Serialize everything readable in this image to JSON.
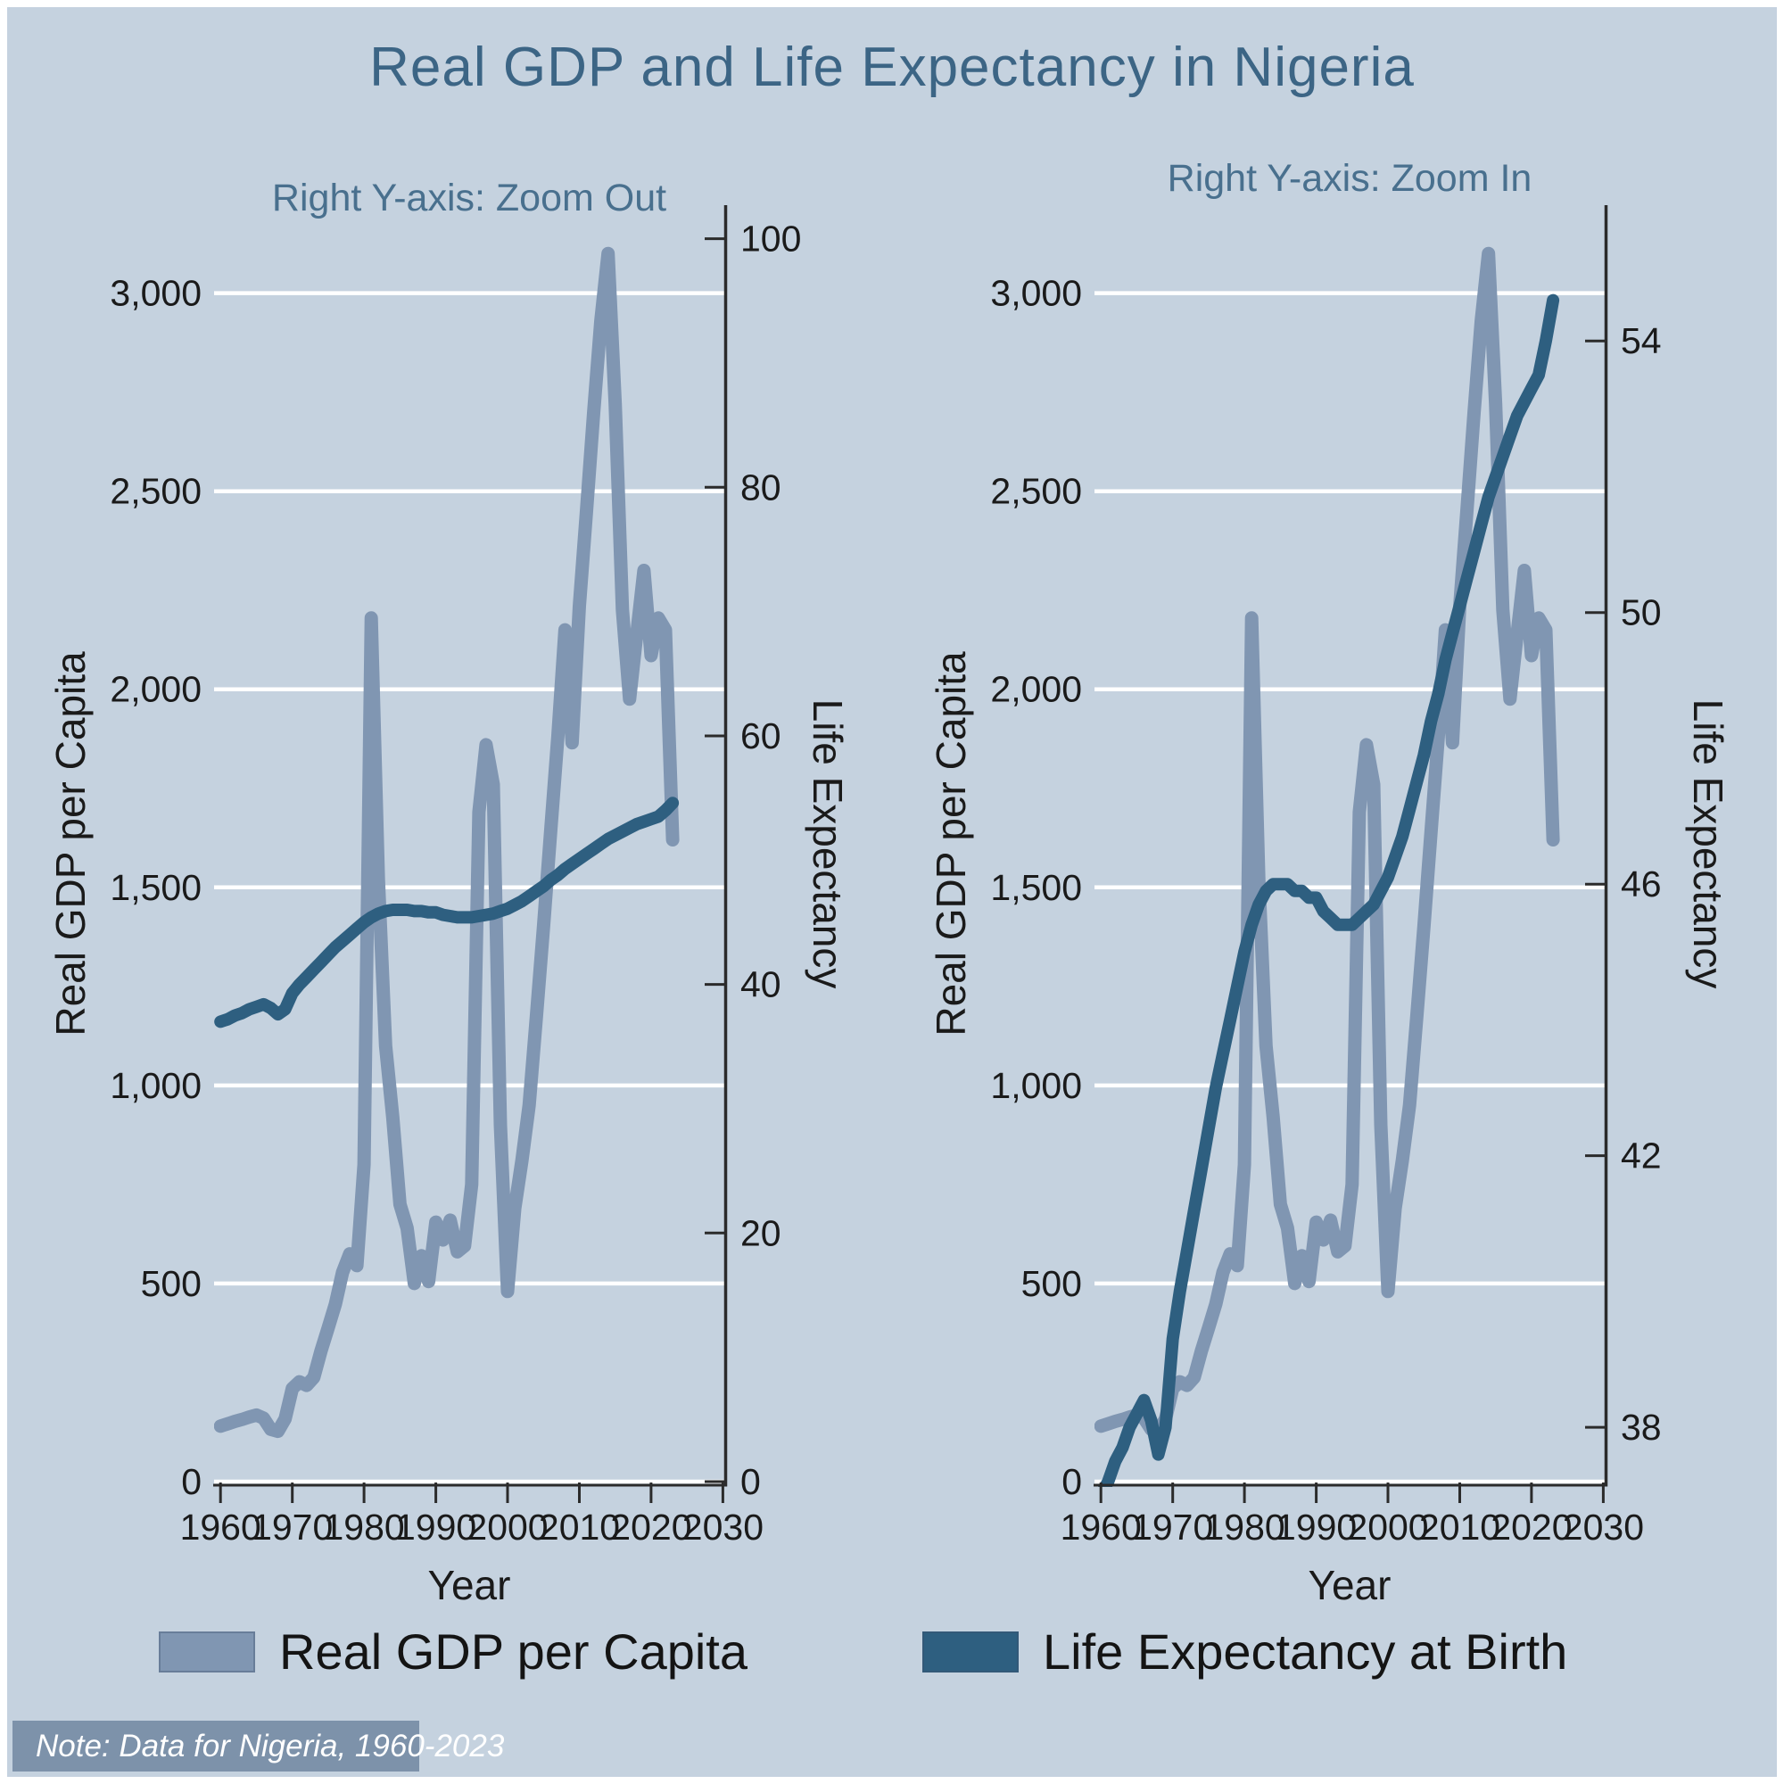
{
  "title": "Real GDP and Life Expectancy in Nigeria",
  "note": {
    "text": "Note: Data for Nigeria, 1960-2023"
  },
  "colors": {
    "page_border": "#FFFFFF",
    "background": "#C5D2DF",
    "grid": "#FFFFFF",
    "axis": "#2B2B2B",
    "tick_text": "#1A1A1A",
    "title": "#3C6585",
    "subtitle": "#49708E",
    "note_bg": "#7D92AA",
    "note_text": "#FFFFFF",
    "gdp_line": "#8096B2",
    "life_line": "#2E5F80"
  },
  "legend": {
    "items": [
      {
        "key": "gdp",
        "label": "Real GDP per Capita"
      },
      {
        "key": "life",
        "label": "Life Expectancy at Birth"
      }
    ]
  },
  "years": [
    1960,
    1961,
    1962,
    1963,
    1964,
    1965,
    1966,
    1967,
    1968,
    1969,
    1970,
    1971,
    1972,
    1973,
    1974,
    1975,
    1976,
    1977,
    1978,
    1979,
    1980,
    1981,
    1982,
    1983,
    1984,
    1985,
    1986,
    1987,
    1988,
    1989,
    1990,
    1991,
    1992,
    1993,
    1994,
    1995,
    1996,
    1997,
    1998,
    1999,
    2000,
    2001,
    2002,
    2003,
    2004,
    2005,
    2006,
    2007,
    2008,
    2009,
    2010,
    2011,
    2012,
    2013,
    2014,
    2015,
    2016,
    2017,
    2018,
    2019,
    2020,
    2021,
    2022,
    2023
  ],
  "series": {
    "gdp": {
      "name": "Real GDP per Capita",
      "axis": "left",
      "color": "#8096B2",
      "values": [
        140,
        146,
        152,
        157,
        163,
        168,
        160,
        132,
        127,
        158,
        235,
        252,
        243,
        263,
        330,
        388,
        448,
        528,
        575,
        545,
        800,
        2180,
        1520,
        1100,
        920,
        700,
        640,
        500,
        570,
        505,
        655,
        610,
        660,
        580,
        595,
        750,
        1690,
        1860,
        1760,
        900,
        480,
        690,
        810,
        950,
        1170,
        1400,
        1640,
        1880,
        2150,
        1865,
        2210,
        2450,
        2700,
        2930,
        3100,
        2720,
        2200,
        1975,
        2140,
        2300,
        2085,
        2180,
        2150,
        1620
      ]
    },
    "life": {
      "name": "Life Expectancy at Birth",
      "axis": "right",
      "color": "#2E5F80",
      "values": [
        37.0,
        37.2,
        37.5,
        37.7,
        38.0,
        38.2,
        38.4,
        38.1,
        37.6,
        38.0,
        39.3,
        40.0,
        40.6,
        41.2,
        41.8,
        42.4,
        43.0,
        43.5,
        44.0,
        44.5,
        45.0,
        45.4,
        45.7,
        45.9,
        46.0,
        46.0,
        46.0,
        45.9,
        45.9,
        45.8,
        45.8,
        45.6,
        45.5,
        45.4,
        45.4,
        45.4,
        45.5,
        45.6,
        45.7,
        45.9,
        46.1,
        46.4,
        46.7,
        47.1,
        47.5,
        47.9,
        48.4,
        48.8,
        49.3,
        49.7,
        50.1,
        50.5,
        50.9,
        51.3,
        51.7,
        52.0,
        52.3,
        52.6,
        52.9,
        53.1,
        53.3,
        53.5,
        54.0,
        54.6
      ]
    }
  },
  "chart_data": [
    {
      "type": "line",
      "title": "Right Y-axis: Zoom Out",
      "xlabel": "Year",
      "ylabel_left": "Real GDP per Capita",
      "ylabel_right": "Life Expectancy",
      "x_ticks": [
        1960,
        1970,
        1980,
        1990,
        2000,
        2010,
        2020,
        2030
      ],
      "xlim": [
        1959.1,
        2030.2
      ],
      "left_ticks": [
        0,
        500,
        1000,
        1500,
        2000,
        2500,
        3000
      ],
      "left_tick_labels": [
        "0",
        "500",
        "1,000",
        "1,500",
        "2,000",
        "2,500",
        "3,000"
      ],
      "left_range": [
        0,
        3222
      ],
      "right_ticks": [
        0,
        20,
        40,
        60,
        80,
        100
      ],
      "right_range": [
        0,
        102.7
      ],
      "grid": true,
      "series_keys": [
        "gdp",
        "life"
      ],
      "legend_position": "bottom"
    },
    {
      "type": "line",
      "title": "Right Y-axis: Zoom In",
      "xlabel": "Year",
      "ylabel_left": "Real GDP per Capita",
      "ylabel_right": "Life Expectancy",
      "x_ticks": [
        1960,
        1970,
        1980,
        1990,
        2000,
        2010,
        2020,
        2030
      ],
      "xlim": [
        1959.1,
        2030.2
      ],
      "left_ticks": [
        0,
        500,
        1000,
        1500,
        2000,
        2500,
        3000
      ],
      "left_tick_labels": [
        "0",
        "500",
        "1,000",
        "1,500",
        "2,000",
        "2,500",
        "3,000"
      ],
      "left_range": [
        0,
        3222
      ],
      "right_ticks": [
        38,
        42,
        46,
        50,
        54
      ],
      "right_range": [
        37.2,
        56.0
      ],
      "grid": true,
      "series_keys": [
        "gdp",
        "life"
      ],
      "legend_position": "bottom"
    }
  ]
}
